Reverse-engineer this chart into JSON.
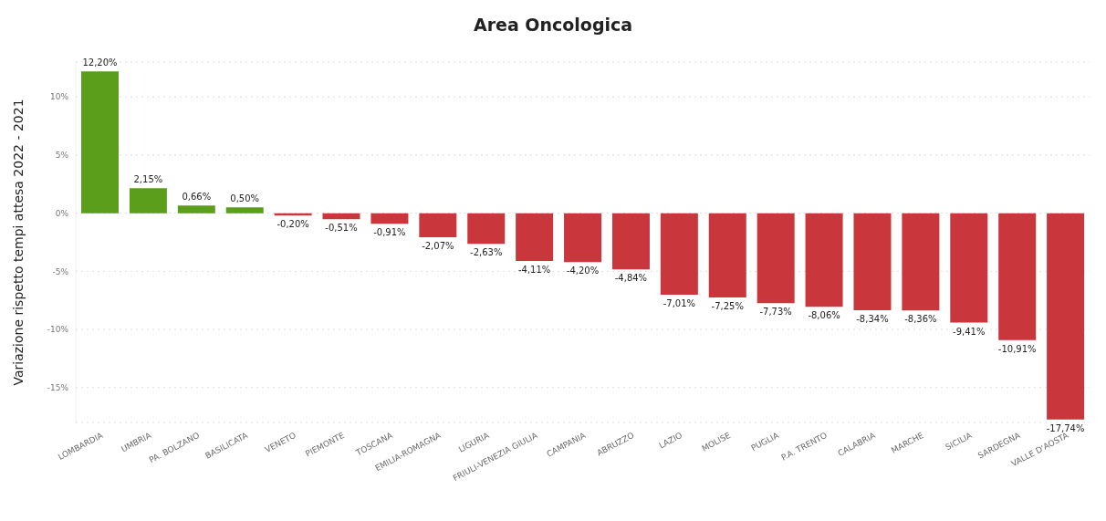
{
  "chart_data": {
    "type": "bar",
    "title": "Area Oncologica",
    "ylabel": "Variazione rispetto tempi attesa 2022 - 2021",
    "categories": [
      "LOMBARDIA",
      "UMBRIA",
      "PA. BOLZANO",
      "BASILICATA",
      "VENETO",
      "PIEMONTE",
      "TOSCANA",
      "EMILIA-ROMAGNA",
      "LIGURIA",
      "FRIULI-VENEZIA GIULIA",
      "CAMPANIA",
      "ABRUZZO",
      "LAZIO",
      "MOLISE",
      "PUGLIA",
      "P.A. TRENTO",
      "CALABRIA",
      "MARCHE",
      "SICILIA",
      "SARDEGNA",
      "VALLE D'AOSTA"
    ],
    "values": [
      12.2,
      2.15,
      0.66,
      0.5,
      -0.2,
      -0.51,
      -0.91,
      -2.07,
      -2.63,
      -4.11,
      -4.2,
      -4.84,
      -7.01,
      -7.25,
      -7.73,
      -8.06,
      -8.34,
      -8.36,
      -9.41,
      -10.91,
      -17.74
    ],
    "value_labels": [
      "12,20%",
      "2,15%",
      "0,66%",
      "0,50%",
      "-0,20%",
      "-0,51%",
      "-0,91%",
      "-2,07%",
      "-2,63%",
      "-4,11%",
      "-4,20%",
      "-4,84%",
      "-7,01%",
      "-7,25%",
      "-7,73%",
      "-8,06%",
      "-8,34%",
      "-8,36%",
      "-9,41%",
      "-10,91%",
      "-17,74%"
    ],
    "colors": [
      "#5b9e1c",
      "#5b9e1c",
      "#5b9e1c",
      "#5b9e1c",
      "#c9363b",
      "#c9363b",
      "#c9363b",
      "#c9363b",
      "#c9363b",
      "#c9363b",
      "#c9363b",
      "#c9363b",
      "#c9363b",
      "#c9363b",
      "#c9363b",
      "#c9363b",
      "#c9363b",
      "#c9363b",
      "#c9363b",
      "#c9363b",
      "#c9363b"
    ],
    "ylim": [
      -18,
      13
    ],
    "yticks": [
      {
        "value": -15,
        "label": "-15%"
      },
      {
        "value": -10,
        "label": "-10%"
      },
      {
        "value": -5,
        "label": "-5%"
      },
      {
        "value": 0,
        "label": "0%"
      },
      {
        "value": 5,
        "label": "5%"
      },
      {
        "value": 10,
        "label": "10%"
      }
    ],
    "grid": "y",
    "legend": false
  }
}
